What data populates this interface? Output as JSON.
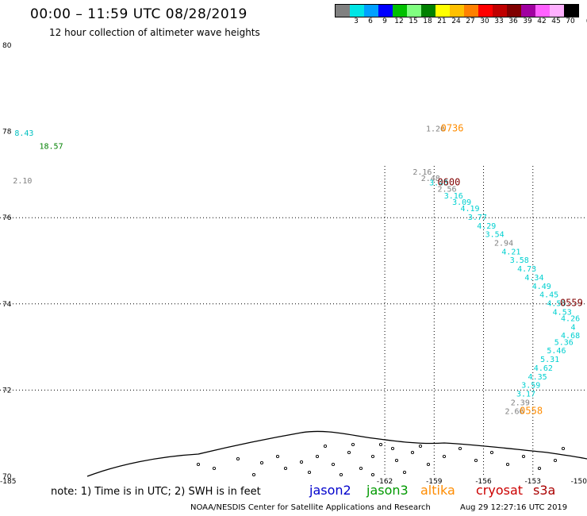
{
  "title": "00:00 – 11:59 UTC 08/28/2019",
  "subtitle": "12 hour collection of altimeter wave heights",
  "colorbar": {
    "colors": [
      "#808080",
      "#00e5e5",
      "#00a0ff",
      "#0000ff",
      "#00c000",
      "#80ff80",
      "#008000",
      "#ffff00",
      "#ffc000",
      "#ff8000",
      "#ff0000",
      "#c00000",
      "#800000",
      "#a000a0",
      "#ff60ff",
      "#ffb0ff",
      "#000000"
    ],
    "labels": [
      "3",
      "6",
      "9",
      "12",
      "15",
      "18",
      "21",
      "24",
      "27",
      "30",
      "33",
      "36",
      "39",
      "42",
      "45",
      "70"
    ],
    "unit": "(ft)"
  },
  "axes": {
    "lat_ticks": [
      "80",
      "78",
      "76",
      "74",
      "72",
      "70"
    ],
    "lon_ticks": [
      "-185",
      "-162",
      "-159",
      "-156",
      "-153",
      "-150"
    ]
  },
  "observations": [
    {
      "v": "8.43",
      "lat": 77.9,
      "lon": -184.5,
      "c": "#00c0c0"
    },
    {
      "v": "18.57",
      "lat": 77.6,
      "lon": -183.0,
      "c": "#008000"
    },
    {
      "v": "2.10",
      "lat": 76.8,
      "lon": -184.6,
      "c": "#808080"
    },
    {
      "v": "1.26",
      "lat": 78.0,
      "lon": -159.5,
      "c": "#808080"
    },
    {
      "v": "0736",
      "lat": 78.0,
      "lon": -158.6,
      "c": "#ff8c00",
      "time": true
    },
    {
      "v": "2.16",
      "lat": 77.0,
      "lon": -160.3,
      "c": "#808080"
    },
    {
      "v": "2.48",
      "lat": 76.85,
      "lon": -159.8,
      "c": "#808080"
    },
    {
      "v": "3.45",
      "lat": 76.75,
      "lon": -159.3,
      "c": "#00d0d0"
    },
    {
      "v": "0600",
      "lat": 76.75,
      "lon": -158.8,
      "c": "#800000",
      "time": true
    },
    {
      "v": "2.56",
      "lat": 76.6,
      "lon": -158.8,
      "c": "#808080"
    },
    {
      "v": "3.16",
      "lat": 76.45,
      "lon": -158.4,
      "c": "#00d0d0"
    },
    {
      "v": "3.09",
      "lat": 76.3,
      "lon": -157.9,
      "c": "#00d0d0"
    },
    {
      "v": "4.19",
      "lat": 76.15,
      "lon": -157.4,
      "c": "#00d0d0"
    },
    {
      "v": "3.77",
      "lat": 75.95,
      "lon": -156.95,
      "c": "#00d0d0"
    },
    {
      "v": "4.29",
      "lat": 75.75,
      "lon": -156.4,
      "c": "#00d0d0"
    },
    {
      "v": "3.54",
      "lat": 75.55,
      "lon": -155.9,
      "c": "#00d0d0"
    },
    {
      "v": "2.94",
      "lat": 75.35,
      "lon": -155.35,
      "c": "#808080"
    },
    {
      "v": "4.21",
      "lat": 75.15,
      "lon": -154.9,
      "c": "#00d0d0"
    },
    {
      "v": "3.58",
      "lat": 74.95,
      "lon": -154.4,
      "c": "#00d0d0"
    },
    {
      "v": "4.73",
      "lat": 74.75,
      "lon": -153.95,
      "c": "#00d0d0"
    },
    {
      "v": "4.34",
      "lat": 74.55,
      "lon": -153.5,
      "c": "#00d0d0"
    },
    {
      "v": "4.49",
      "lat": 74.35,
      "lon": -153.05,
      "c": "#00d0d0"
    },
    {
      "v": "4.45",
      "lat": 74.15,
      "lon": -152.6,
      "c": "#00d0d0"
    },
    {
      "v": "4.53",
      "lat": 73.95,
      "lon": -152.15,
      "c": "#00d0d0"
    },
    {
      "v": "0559",
      "lat": 73.95,
      "lon": -151.35,
      "c": "#800000",
      "time": true
    },
    {
      "v": "4.53",
      "lat": 73.75,
      "lon": -151.8,
      "c": "#00d0d0"
    },
    {
      "v": "4.26",
      "lat": 73.6,
      "lon": -151.3,
      "c": "#00d0d0"
    },
    {
      "v": "4",
      "lat": 73.4,
      "lon": -150.7,
      "c": "#00d0d0"
    },
    {
      "v": "4.68",
      "lat": 73.2,
      "lon": -151.3,
      "c": "#00d0d0"
    },
    {
      "v": "5.36",
      "lat": 73.05,
      "lon": -151.7,
      "c": "#00d0d0"
    },
    {
      "v": "5.46",
      "lat": 72.85,
      "lon": -152.15,
      "c": "#00d0d0"
    },
    {
      "v": "5.31",
      "lat": 72.65,
      "lon": -152.55,
      "c": "#00d0d0"
    },
    {
      "v": "4.62",
      "lat": 72.45,
      "lon": -152.95,
      "c": "#00d0d0"
    },
    {
      "v": "4.35",
      "lat": 72.25,
      "lon": -153.3,
      "c": "#00d0d0"
    },
    {
      "v": "3.59",
      "lat": 72.05,
      "lon": -153.7,
      "c": "#00d0d0"
    },
    {
      "v": "3.17",
      "lat": 71.85,
      "lon": -154.0,
      "c": "#00d0d0"
    },
    {
      "v": "2.39",
      "lat": 71.65,
      "lon": -154.35,
      "c": "#808080"
    },
    {
      "v": "2.66",
      "lat": 71.45,
      "lon": -154.7,
      "c": "#808080"
    },
    {
      "v": "0558",
      "lat": 71.45,
      "lon": -153.8,
      "c": "#ff8c00",
      "time": true
    }
  ],
  "note": "note: 1) Time is in UTC; 2) SWH is in feet",
  "satellites": [
    {
      "name": "jason2",
      "color": "#0000cc"
    },
    {
      "name": "jason3",
      "color": "#009900"
    },
    {
      "name": "altika",
      "color": "#ff8c00"
    },
    {
      "name": "cryosat",
      "color": "#cc0000"
    },
    {
      "name": "s3a",
      "color": "#aa0000"
    }
  ],
  "footer_org": "NOAA/NESDIS Center for Satellite Applications and Research",
  "footer_timestamp": "Aug 29 12:27:16 UTC 2019"
}
